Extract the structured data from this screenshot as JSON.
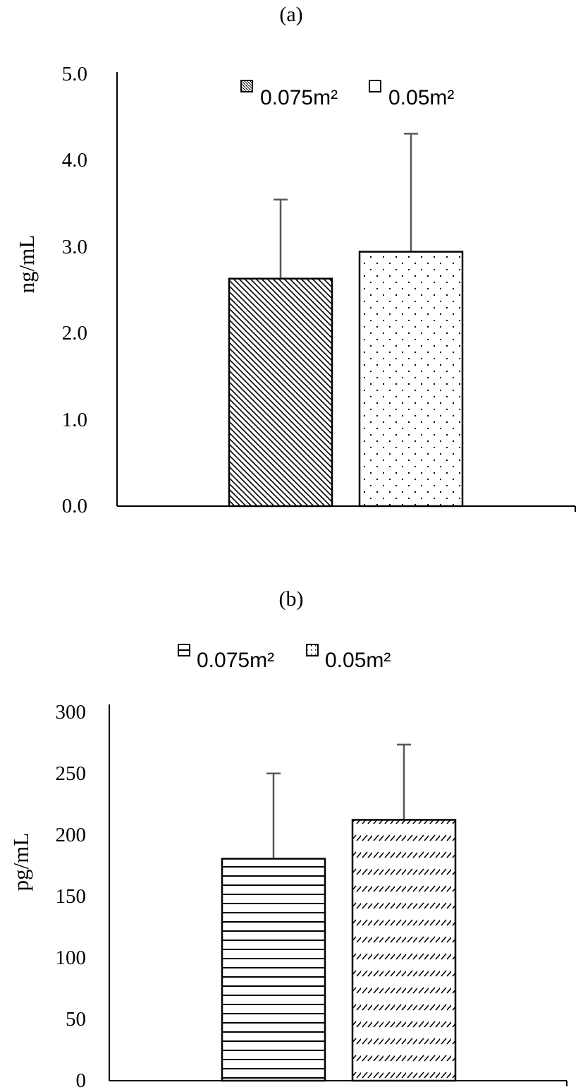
{
  "chart_data": [
    {
      "type": "bar",
      "panel_label": "(a)",
      "ylabel": "ng/mL",
      "ylim": [
        0,
        5
      ],
      "yticks": [
        "0.0",
        "1.0",
        "2.0",
        "3.0",
        "4.0",
        "5.0"
      ],
      "ytick_values": [
        0,
        1,
        2,
        3,
        4,
        5
      ],
      "legend_position": "top-center, inside plot",
      "series": [
        {
          "name": "0.075m²",
          "value": 2.62,
          "error": 0.91,
          "pattern": "diagonal-hatch"
        },
        {
          "name": "0.05m²",
          "value": 2.93,
          "error": 1.36,
          "pattern": "dots"
        }
      ]
    },
    {
      "type": "bar",
      "panel_label": "(b)",
      "ylabel": "pg/mL",
      "ylim": [
        0,
        300
      ],
      "yticks": [
        "0",
        "50",
        "100",
        "150",
        "200",
        "250",
        "300"
      ],
      "ytick_values": [
        0,
        50,
        100,
        150,
        200,
        250,
        300
      ],
      "legend_position": "above plot, centered",
      "series": [
        {
          "name": "0.075m²",
          "value": 177,
          "error": 68,
          "pattern": "horizontal-lines"
        },
        {
          "name": "0.05m²",
          "value": 208,
          "error": 60,
          "pattern": "dashed-diagonal"
        }
      ]
    }
  ]
}
